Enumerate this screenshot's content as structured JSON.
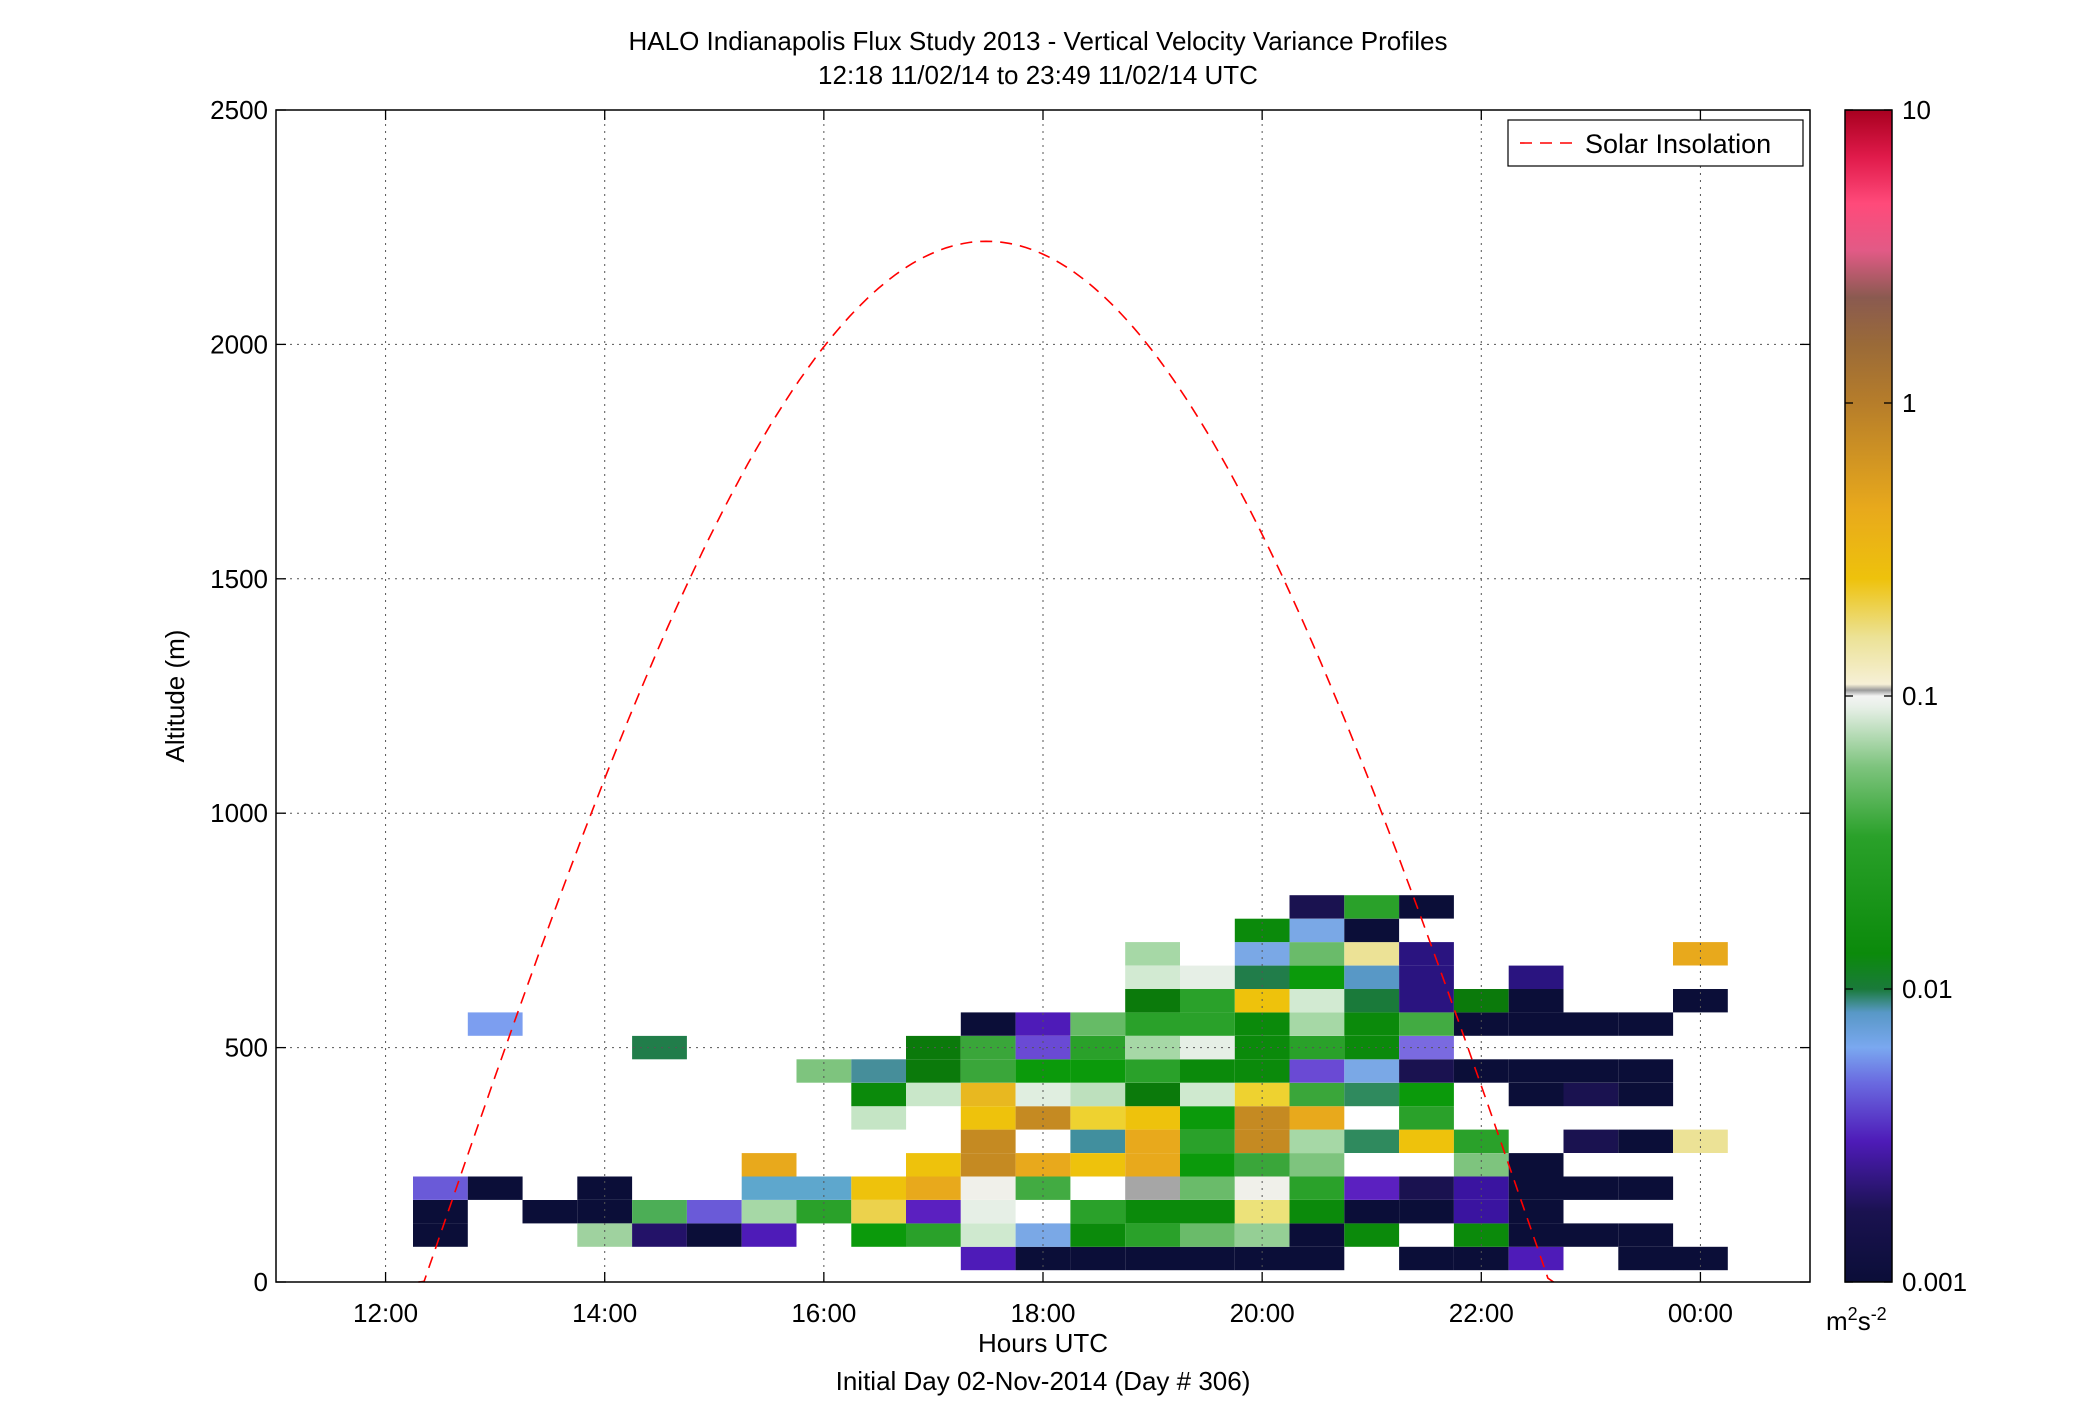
{
  "chart_data": {
    "type": "heatmap",
    "title": "HALO Indianapolis Flux Study 2013 - Vertical Velocity Variance Profiles",
    "subtitle": "12:18 11/02/14 to 23:49 11/02/14  UTC",
    "xlabel": "Hours UTC",
    "xlabel2": "Initial Day 02-Nov-2014 (Day # 306)",
    "ylabel": "Altitude (m)",
    "xlim": [
      11.0,
      25.0
    ],
    "ylim": [
      0,
      2500
    ],
    "x_ticks": [
      12,
      14,
      16,
      18,
      20,
      22,
      24
    ],
    "x_tick_labels": [
      "12:00",
      "14:00",
      "16:00",
      "18:00",
      "20:00",
      "22:00",
      "00:00"
    ],
    "y_ticks": [
      0,
      500,
      1000,
      1500,
      2000,
      2500
    ],
    "y_tick_labels": [
      "0",
      "500",
      "1000",
      "1500",
      "2000",
      "2500"
    ],
    "grid": true,
    "legend_position": "top-right",
    "legend": [
      "Solar Insolation"
    ],
    "colorbar": {
      "scale": "log",
      "range": [
        0.001,
        10
      ],
      "ticks": [
        0.001,
        0.01,
        0.1,
        1,
        10
      ],
      "tick_labels": [
        "0.001",
        "0.01",
        "0.1",
        "1",
        "10"
      ],
      "unit_base": "m",
      "unit_exp1": "2",
      "unit_mid": "s",
      "unit_exp2": "-2"
    },
    "bin_width_hours": 0.5,
    "bin_height_m": 50,
    "cells": [
      [
        12.5,
        100,
        "#0b0e38"
      ],
      [
        12.5,
        150,
        "#0b0e38"
      ],
      [
        12.5,
        200,
        "#6a5ad8"
      ],
      [
        13.0,
        200,
        "#0b0e38"
      ],
      [
        13.0,
        550,
        "#7c9ef0"
      ],
      [
        13.5,
        150,
        "#0b0e38"
      ],
      [
        14.0,
        150,
        "#0b0e38"
      ],
      [
        14.0,
        200,
        "#0b0e38"
      ],
      [
        14.0,
        100,
        "#9fd29f"
      ],
      [
        14.5,
        100,
        "#231268"
      ],
      [
        14.5,
        150,
        "#4cae56"
      ],
      [
        14.5,
        500,
        "#217d4a"
      ],
      [
        15.0,
        100,
        "#0b0e38"
      ],
      [
        15.0,
        150,
        "#6a5ad8"
      ],
      [
        15.5,
        100,
        "#4e1bb8"
      ],
      [
        15.5,
        150,
        "#a6d8a6"
      ],
      [
        15.5,
        200,
        "#5ea7cd"
      ],
      [
        15.5,
        250,
        "#e8a91c"
      ],
      [
        16.0,
        150,
        "#2aa12a"
      ],
      [
        16.0,
        200,
        "#5ea7cd"
      ],
      [
        16.0,
        450,
        "#7ec47e"
      ],
      [
        16.5,
        100,
        "#0b9a0b"
      ],
      [
        16.5,
        150,
        "#ecd24c"
      ],
      [
        16.5,
        200,
        "#eec20c"
      ],
      [
        16.5,
        350,
        "#c5e5c5"
      ],
      [
        16.5,
        400,
        "#0b8a0b"
      ],
      [
        16.5,
        450,
        "#468e9a"
      ],
      [
        17.0,
        100,
        "#2aa12a"
      ],
      [
        17.0,
        150,
        "#5b20c0"
      ],
      [
        17.0,
        200,
        "#e8a91c"
      ],
      [
        17.0,
        250,
        "#eec20c"
      ],
      [
        17.0,
        400,
        "#c9e7c9"
      ],
      [
        17.0,
        450,
        "#0b7a0b"
      ],
      [
        17.0,
        500,
        "#0b7a0b"
      ],
      [
        17.5,
        50,
        "#4e1bb8"
      ],
      [
        17.5,
        100,
        "#cfe9cf"
      ],
      [
        17.5,
        150,
        "#e6efe6"
      ],
      [
        17.5,
        200,
        "#f0f0ea"
      ],
      [
        17.5,
        250,
        "#c58a22"
      ],
      [
        17.5,
        300,
        "#c58a22"
      ],
      [
        17.5,
        350,
        "#eec20c"
      ],
      [
        17.5,
        400,
        "#e8b820"
      ],
      [
        17.5,
        450,
        "#3aa63a"
      ],
      [
        17.5,
        500,
        "#3aa63a"
      ],
      [
        17.5,
        550,
        "#0b0e38"
      ],
      [
        18.0,
        50,
        "#0b0e38"
      ],
      [
        18.0,
        100,
        "#7aa8e6"
      ],
      [
        18.0,
        200,
        "#42ab42"
      ],
      [
        18.0,
        250,
        "#e8a91c"
      ],
      [
        18.0,
        350,
        "#c58a22"
      ],
      [
        18.0,
        400,
        "#e0eee0"
      ],
      [
        18.0,
        450,
        "#0b9a0b"
      ],
      [
        18.0,
        500,
        "#6a4ad4"
      ],
      [
        18.0,
        550,
        "#4e1bb8"
      ],
      [
        18.5,
        50,
        "#0b0e38"
      ],
      [
        18.5,
        100,
        "#0b8a0b"
      ],
      [
        18.5,
        150,
        "#2aa12a"
      ],
      [
        18.5,
        250,
        "#eec20c"
      ],
      [
        18.5,
        300,
        "#418f9e"
      ],
      [
        18.5,
        350,
        "#eed230"
      ],
      [
        18.5,
        400,
        "#bde0bd"
      ],
      [
        18.5,
        450,
        "#0b9a0b"
      ],
      [
        18.5,
        500,
        "#2aa12a"
      ],
      [
        18.5,
        550,
        "#66bb66"
      ],
      [
        19.0,
        50,
        "#0b0e38"
      ],
      [
        19.0,
        100,
        "#2aa12a"
      ],
      [
        19.0,
        150,
        "#0b8a0b"
      ],
      [
        19.0,
        200,
        "#a6a6a6"
      ],
      [
        19.0,
        250,
        "#e8a91c"
      ],
      [
        19.0,
        300,
        "#e8a91c"
      ],
      [
        19.0,
        350,
        "#eec20c"
      ],
      [
        19.0,
        400,
        "#0b7a0b"
      ],
      [
        19.0,
        450,
        "#2aa12a"
      ],
      [
        19.0,
        500,
        "#a6d8a6"
      ],
      [
        19.0,
        550,
        "#2aa12a"
      ],
      [
        19.0,
        600,
        "#0b7a0b"
      ],
      [
        19.0,
        650,
        "#d2ead2"
      ],
      [
        19.0,
        700,
        "#a6d8a6"
      ],
      [
        19.5,
        50,
        "#0b0e38"
      ],
      [
        19.5,
        100,
        "#6abb6a"
      ],
      [
        19.5,
        150,
        "#0b8a0b"
      ],
      [
        19.5,
        200,
        "#6abb6a"
      ],
      [
        19.5,
        250,
        "#0b9a0b"
      ],
      [
        19.5,
        300,
        "#2aa12a"
      ],
      [
        19.5,
        350,
        "#0b9a0b"
      ],
      [
        19.5,
        400,
        "#cfe9cf"
      ],
      [
        19.5,
        450,
        "#0b8a0b"
      ],
      [
        19.5,
        500,
        "#e6efe6"
      ],
      [
        19.5,
        550,
        "#2aa12a"
      ],
      [
        19.5,
        600,
        "#2aa12a"
      ],
      [
        19.5,
        650,
        "#e6efe6"
      ],
      [
        20.0,
        50,
        "#0b0e38"
      ],
      [
        20.0,
        100,
        "#95cf95"
      ],
      [
        20.0,
        150,
        "#ece27a"
      ],
      [
        20.0,
        200,
        "#f0f0ea"
      ],
      [
        20.0,
        250,
        "#3aa63a"
      ],
      [
        20.0,
        300,
        "#c58a22"
      ],
      [
        20.0,
        350,
        "#c58a22"
      ],
      [
        20.0,
        400,
        "#eed230"
      ],
      [
        20.0,
        450,
        "#0b8a0b"
      ],
      [
        20.0,
        500,
        "#0b8a0b"
      ],
      [
        20.0,
        550,
        "#0b8a0b"
      ],
      [
        20.0,
        600,
        "#eec20c"
      ],
      [
        20.0,
        650,
        "#217d4a"
      ],
      [
        20.0,
        700,
        "#7aa8e6"
      ],
      [
        20.0,
        750,
        "#0b8a0b"
      ],
      [
        20.5,
        50,
        "#0b0e38"
      ],
      [
        20.5,
        100,
        "#0b0e38"
      ],
      [
        20.5,
        150,
        "#0b8a0b"
      ],
      [
        20.5,
        200,
        "#2aa12a"
      ],
      [
        20.5,
        250,
        "#7ec47e"
      ],
      [
        20.5,
        300,
        "#a6d8a6"
      ],
      [
        20.5,
        350,
        "#e8a91c"
      ],
      [
        20.5,
        400,
        "#3aa63a"
      ],
      [
        20.5,
        450,
        "#6a4ad4"
      ],
      [
        20.5,
        500,
        "#2aa12a"
      ],
      [
        20.5,
        550,
        "#a6d8a6"
      ],
      [
        20.5,
        600,
        "#d2ead2"
      ],
      [
        20.5,
        650,
        "#0b9a0b"
      ],
      [
        20.5,
        700,
        "#6abb6a"
      ],
      [
        20.5,
        750,
        "#7aa8e6"
      ],
      [
        20.5,
        800,
        "#1a1250"
      ],
      [
        21.0,
        100,
        "#0b8a0b"
      ],
      [
        21.0,
        150,
        "#0b0e38"
      ],
      [
        21.0,
        200,
        "#5b20c0"
      ],
      [
        21.0,
        300,
        "#2f8a5e"
      ],
      [
        21.0,
        400,
        "#2f8a5e"
      ],
      [
        21.0,
        450,
        "#7aa8e6"
      ],
      [
        21.0,
        500,
        "#0b8a0b"
      ],
      [
        21.0,
        550,
        "#0b8a0b"
      ],
      [
        21.0,
        600,
        "#1a7a3a"
      ],
      [
        21.0,
        650,
        "#5898c6"
      ],
      [
        21.0,
        700,
        "#ece296"
      ],
      [
        21.0,
        750,
        "#0b0e38"
      ],
      [
        21.0,
        800,
        "#2aa12a"
      ],
      [
        21.5,
        50,
        "#0b0e38"
      ],
      [
        21.5,
        150,
        "#0b0e38"
      ],
      [
        21.5,
        200,
        "#1a1250"
      ],
      [
        21.5,
        300,
        "#eec20c"
      ],
      [
        21.5,
        350,
        "#2aa12a"
      ],
      [
        21.5,
        400,
        "#0b9a0b"
      ],
      [
        21.5,
        450,
        "#1a1250"
      ],
      [
        21.5,
        500,
        "#7a6ae0"
      ],
      [
        21.5,
        550,
        "#42ab42"
      ],
      [
        21.5,
        600,
        "#2a1480"
      ],
      [
        21.5,
        650,
        "#2a1480"
      ],
      [
        21.5,
        700,
        "#2a1480"
      ],
      [
        21.5,
        800,
        "#0b0e38"
      ],
      [
        22.0,
        50,
        "#0b0e38"
      ],
      [
        22.0,
        100,
        "#0b8a0b"
      ],
      [
        22.0,
        150,
        "#3a14a0"
      ],
      [
        22.0,
        200,
        "#3a14a0"
      ],
      [
        22.0,
        250,
        "#7ec47e"
      ],
      [
        22.0,
        300,
        "#2aa12a"
      ],
      [
        22.0,
        450,
        "#0b0e38"
      ],
      [
        22.0,
        550,
        "#0b0e38"
      ],
      [
        22.0,
        600,
        "#0b7a0b"
      ],
      [
        22.5,
        50,
        "#4e1bb8"
      ],
      [
        22.5,
        100,
        "#0b0e38"
      ],
      [
        22.5,
        150,
        "#0b0e38"
      ],
      [
        22.5,
        200,
        "#0b0e38"
      ],
      [
        22.5,
        250,
        "#0b0e38"
      ],
      [
        22.5,
        400,
        "#0b0e38"
      ],
      [
        22.5,
        450,
        "#0b0e38"
      ],
      [
        22.5,
        550,
        "#0b0e38"
      ],
      [
        22.5,
        600,
        "#0b0e38"
      ],
      [
        22.5,
        650,
        "#2a1480"
      ],
      [
        23.0,
        100,
        "#0b0e38"
      ],
      [
        23.0,
        200,
        "#0b0e38"
      ],
      [
        23.0,
        300,
        "#1a1250"
      ],
      [
        23.0,
        400,
        "#1a1250"
      ],
      [
        23.0,
        450,
        "#0b0e38"
      ],
      [
        23.0,
        550,
        "#0b0e38"
      ],
      [
        23.5,
        50,
        "#0b0e38"
      ],
      [
        23.5,
        100,
        "#0b0e38"
      ],
      [
        23.5,
        200,
        "#0b0e38"
      ],
      [
        23.5,
        300,
        "#0b0e38"
      ],
      [
        23.5,
        400,
        "#0b0e38"
      ],
      [
        23.5,
        450,
        "#0b0e38"
      ],
      [
        23.5,
        550,
        "#0b0e38"
      ],
      [
        24.0,
        50,
        "#0b0e38"
      ],
      [
        24.0,
        300,
        "#ece296"
      ],
      [
        24.0,
        600,
        "#0b0e38"
      ],
      [
        24.0,
        700,
        "#e8a91c"
      ]
    ],
    "solar_insolation": {
      "color": "#ff0000",
      "sunrise_hours": 12.35,
      "sunset_hours": 22.62,
      "peak_hours": 17.47,
      "peak_altitude_scaled": 2220
    }
  }
}
